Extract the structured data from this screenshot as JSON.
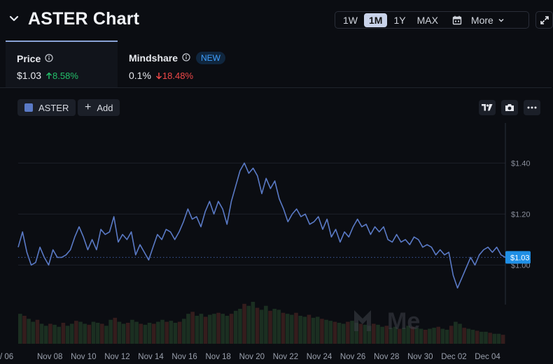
{
  "header": {
    "title": "ASTER Chart",
    "ranges": [
      "1W",
      "1M",
      "1Y",
      "MAX"
    ],
    "active_range": "1M",
    "more_label": "More"
  },
  "metrics": {
    "price": {
      "label": "Price",
      "value": "$1.03",
      "change": "8.58%",
      "direction": "up"
    },
    "mindshare": {
      "label": "Mindshare",
      "badge": "NEW",
      "value": "0.1%",
      "change": "18.48%",
      "direction": "down"
    }
  },
  "toolbar": {
    "asset_label": "ASTER",
    "add_label": "Add",
    "icons": [
      "tradingview-icon",
      "camera-icon",
      "more-dots-icon"
    ]
  },
  "watermark": "Me",
  "colors": {
    "line": "#5a7ac6",
    "tag": "#1f8fe6",
    "up": "#23c06a",
    "down": "#f04848"
  },
  "chart_data": {
    "type": "line",
    "title": "",
    "xlabel": "",
    "ylabel": "",
    "y_ticks": [
      "$1.40",
      "$1.20",
      "$1.00"
    ],
    "y_tick_values": [
      1.4,
      1.2,
      1.0
    ],
    "ylim": [
      0.79,
      1.53
    ],
    "x_ticks": [
      "/ 06",
      "Nov 08",
      "Nov 10",
      "Nov 12",
      "Nov 14",
      "Nov 16",
      "Nov 18",
      "Nov 20",
      "Nov 22",
      "Nov 24",
      "Nov 26",
      "Nov 28",
      "Nov 30",
      "Dec 02",
      "Dec 04"
    ],
    "current_price_label": "$1.03",
    "current_price": 1.03,
    "grid": true,
    "series": [
      {
        "values": [
          1.07,
          1.13,
          1.05,
          1.0,
          1.01,
          1.07,
          1.03,
          1.0,
          1.06,
          1.03,
          1.03,
          1.04,
          1.06,
          1.11,
          1.15,
          1.11,
          1.06,
          1.1,
          1.06,
          1.14,
          1.12,
          1.13,
          1.19,
          1.09,
          1.12,
          1.1,
          1.13,
          1.04,
          1.08,
          1.05,
          1.02,
          1.07,
          1.12,
          1.1,
          1.14,
          1.13,
          1.1,
          1.13,
          1.17,
          1.22,
          1.18,
          1.19,
          1.15,
          1.21,
          1.25,
          1.2,
          1.25,
          1.22,
          1.16,
          1.25,
          1.31,
          1.37,
          1.4,
          1.36,
          1.38,
          1.35,
          1.28,
          1.34,
          1.3,
          1.33,
          1.26,
          1.22,
          1.17,
          1.2,
          1.22,
          1.19,
          1.2,
          1.16,
          1.17,
          1.19,
          1.14,
          1.18,
          1.11,
          1.14,
          1.09,
          1.13,
          1.11,
          1.15,
          1.18,
          1.15,
          1.16,
          1.12,
          1.15,
          1.13,
          1.15,
          1.1,
          1.09,
          1.12,
          1.09,
          1.1,
          1.08,
          1.11,
          1.1,
          1.07,
          1.08,
          1.07,
          1.04,
          1.06,
          1.04,
          1.05,
          0.96,
          0.91,
          0.95,
          0.99,
          1.03,
          1.0,
          1.04,
          1.06,
          1.07,
          1.05,
          1.07,
          1.04,
          1.03
        ]
      }
    ],
    "volume": [
      0.3,
      0.28,
      0.25,
      0.22,
      0.24,
      0.2,
      0.18,
      0.2,
      0.19,
      0.17,
      0.21,
      0.18,
      0.2,
      0.23,
      0.22,
      0.2,
      0.19,
      0.22,
      0.21,
      0.2,
      0.18,
      0.24,
      0.26,
      0.22,
      0.2,
      0.21,
      0.24,
      0.22,
      0.2,
      0.19,
      0.21,
      0.2,
      0.22,
      0.24,
      0.22,
      0.23,
      0.21,
      0.22,
      0.25,
      0.3,
      0.32,
      0.28,
      0.3,
      0.27,
      0.29,
      0.3,
      0.31,
      0.3,
      0.28,
      0.3,
      0.33,
      0.35,
      0.4,
      0.38,
      0.42,
      0.36,
      0.34,
      0.38,
      0.33,
      0.35,
      0.34,
      0.31,
      0.3,
      0.29,
      0.31,
      0.28,
      0.27,
      0.29,
      0.26,
      0.27,
      0.25,
      0.24,
      0.23,
      0.22,
      0.21,
      0.2,
      0.22,
      0.23,
      0.21,
      0.2,
      0.19,
      0.18,
      0.2,
      0.19,
      0.17,
      0.18,
      0.16,
      0.17,
      0.15,
      0.16,
      0.18,
      0.17,
      0.16,
      0.15,
      0.14,
      0.15,
      0.16,
      0.17,
      0.15,
      0.14,
      0.18,
      0.22,
      0.2,
      0.16,
      0.15,
      0.14,
      0.13,
      0.12,
      0.12,
      0.11,
      0.1,
      0.1,
      0.09
    ]
  }
}
